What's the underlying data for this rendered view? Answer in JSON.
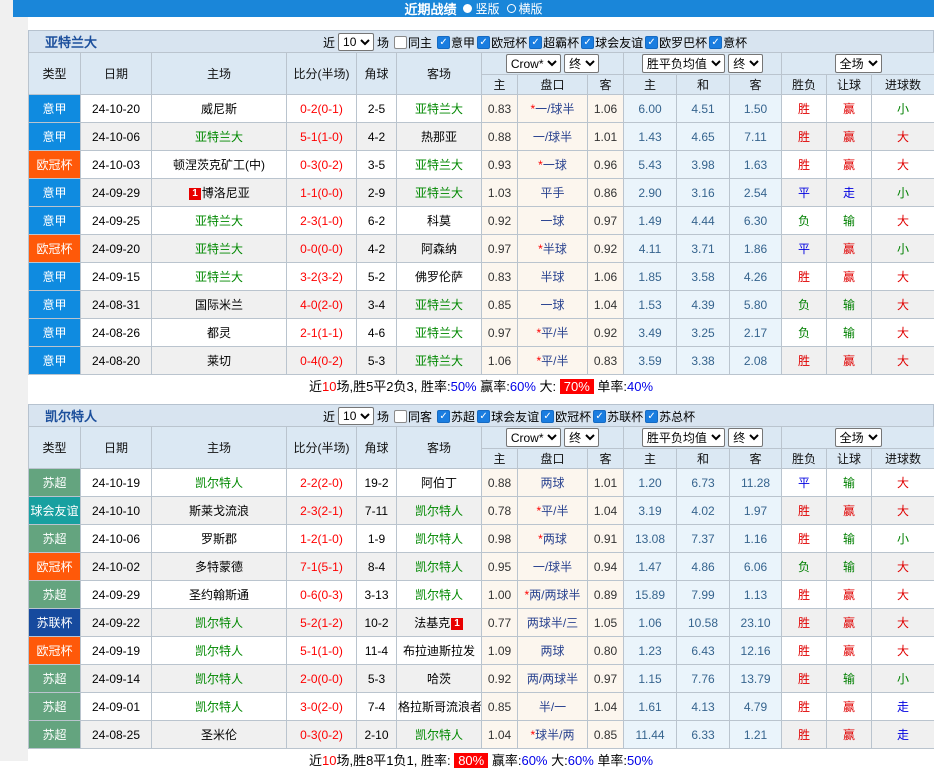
{
  "title_bar": {
    "title": "近期战绩",
    "radio_vertical": "竖版",
    "radio_horizontal": "横版"
  },
  "filter": {
    "near": "近",
    "count": "10",
    "matches": "场"
  },
  "table_header": {
    "type": "类型",
    "date": "日期",
    "home": "主场",
    "score": "比分(半场)",
    "corner": "角球",
    "away": "客场",
    "odds_home": "主",
    "handicap": "盘口",
    "odds_away": "客",
    "avg_home": "主",
    "avg_draw": "和",
    "avg_away": "客",
    "wdl": "胜负",
    "handicap_result": "让球",
    "goals": "进球数",
    "selects": {
      "bookmaker": "Crow*",
      "final1": "终",
      "avg": "胜平负均值",
      "final2": "终",
      "scope": "全场"
    }
  },
  "league_colors": {
    "意甲": "#0f8be0",
    "欧冠杯": "#ff5909",
    "苏超": "#64a47f",
    "球会友谊": "#18a0a0",
    "苏联杯": "#164a9e"
  },
  "accent_colors": {
    "target_team": "#008800",
    "score": "#fe0000",
    "titlebar": "#1a86d9"
  },
  "sections": [
    {
      "team": "亚特兰大",
      "same_side_label": "同主",
      "same_side_checked": false,
      "leagues": [
        {
          "label": "意甲",
          "checked": true
        },
        {
          "label": "欧冠杯",
          "checked": true
        },
        {
          "label": "超霸杯",
          "checked": true
        },
        {
          "label": "球会友谊",
          "checked": true
        },
        {
          "label": "欧罗巴杯",
          "checked": true
        },
        {
          "label": "意杯",
          "checked": true
        }
      ],
      "rows": [
        {
          "lg": "意甲",
          "date": "24-10-20",
          "home": "威尼斯",
          "score": "0-2(0-1)",
          "corner": "2-5",
          "away": "亚特兰大",
          "oh": "0.83",
          "hcp": "*一/球半",
          "oa": "1.06",
          "mh": "6.00",
          "md": "4.51",
          "ma": "1.50",
          "r1": "胜",
          "r2": "赢",
          "r3": "小"
        },
        {
          "lg": "意甲",
          "date": "24-10-06",
          "home": "亚特兰大",
          "score": "5-1(1-0)",
          "corner": "4-2",
          "away": "热那亚",
          "oh": "0.88",
          "hcp": "一/球半",
          "oa": "1.01",
          "mh": "1.43",
          "md": "4.65",
          "ma": "7.11",
          "r1": "胜",
          "r2": "赢",
          "r3": "大"
        },
        {
          "lg": "欧冠杯",
          "date": "24-10-03",
          "home": "顿涅茨克矿工(中)",
          "score": "0-3(0-2)",
          "corner": "3-5",
          "away": "亚特兰大",
          "oh": "0.93",
          "hcp": "*一球",
          "oa": "0.96",
          "mh": "5.43",
          "md": "3.98",
          "ma": "1.63",
          "r1": "胜",
          "r2": "赢",
          "r3": "大"
        },
        {
          "lg": "意甲",
          "date": "24-09-29",
          "home": "博洛尼亚",
          "hc": "1",
          "score": "1-1(0-0)",
          "corner": "2-9",
          "away": "亚特兰大",
          "oh": "1.03",
          "hcp": "平手",
          "oa": "0.86",
          "mh": "2.90",
          "md": "3.16",
          "ma": "2.54",
          "r1": "平",
          "r2": "走",
          "r3": "小"
        },
        {
          "lg": "意甲",
          "date": "24-09-25",
          "home": "亚特兰大",
          "score": "2-3(1-0)",
          "corner": "6-2",
          "away": "科莫",
          "oh": "0.92",
          "hcp": "一球",
          "oa": "0.97",
          "mh": "1.49",
          "md": "4.44",
          "ma": "6.30",
          "r1": "负",
          "r2": "输",
          "r3": "大"
        },
        {
          "lg": "欧冠杯",
          "date": "24-09-20",
          "home": "亚特兰大",
          "score": "0-0(0-0)",
          "corner": "4-2",
          "away": "阿森纳",
          "oh": "0.97",
          "hcp": "*半球",
          "oa": "0.92",
          "mh": "4.11",
          "md": "3.71",
          "ma": "1.86",
          "r1": "平",
          "r2": "赢",
          "r3": "小"
        },
        {
          "lg": "意甲",
          "date": "24-09-15",
          "home": "亚特兰大",
          "score": "3-2(3-2)",
          "corner": "5-2",
          "away": "佛罗伦萨",
          "oh": "0.83",
          "hcp": "半球",
          "oa": "1.06",
          "mh": "1.85",
          "md": "3.58",
          "ma": "4.26",
          "r1": "胜",
          "r2": "赢",
          "r3": "大"
        },
        {
          "lg": "意甲",
          "date": "24-08-31",
          "home": "国际米兰",
          "score": "4-0(2-0)",
          "corner": "3-4",
          "away": "亚特兰大",
          "oh": "0.85",
          "hcp": "一球",
          "oa": "1.04",
          "mh": "1.53",
          "md": "4.39",
          "ma": "5.80",
          "r1": "负",
          "r2": "输",
          "r3": "大"
        },
        {
          "lg": "意甲",
          "date": "24-08-26",
          "home": "都灵",
          "score": "2-1(1-1)",
          "corner": "4-6",
          "away": "亚特兰大",
          "oh": "0.97",
          "hcp": "*平/半",
          "oa": "0.92",
          "mh": "3.49",
          "md": "3.25",
          "ma": "2.17",
          "r1": "负",
          "r2": "输",
          "r3": "大"
        },
        {
          "lg": "意甲",
          "date": "24-08-20",
          "home": "莱切",
          "score": "0-4(0-2)",
          "corner": "5-3",
          "away": "亚特兰大",
          "oh": "1.06",
          "hcp": "*平/半",
          "oa": "0.83",
          "mh": "3.59",
          "md": "3.38",
          "ma": "2.08",
          "r1": "胜",
          "r2": "赢",
          "r3": "大"
        }
      ],
      "summary_parts": [
        {
          "t": "近",
          "c": "k"
        },
        {
          "t": "10",
          "c": "r"
        },
        {
          "t": "场,胜5平2负3, 胜率:",
          "c": "k"
        },
        {
          "t": "50%",
          "c": "b"
        },
        {
          "t": " 赢率:",
          "c": "k"
        },
        {
          "t": "60%",
          "c": "b"
        },
        {
          "t": " 大: ",
          "c": "k"
        },
        {
          "t": "70%",
          "c": "hl"
        },
        {
          "t": " 单率:",
          "c": "k"
        },
        {
          "t": "40%",
          "c": "b"
        }
      ]
    },
    {
      "team": "凯尔特人",
      "same_side_label": "同客",
      "same_side_checked": false,
      "leagues": [
        {
          "label": "苏超",
          "checked": true
        },
        {
          "label": "球会友谊",
          "checked": true
        },
        {
          "label": "欧冠杯",
          "checked": true
        },
        {
          "label": "苏联杯",
          "checked": true
        },
        {
          "label": "苏总杯",
          "checked": true
        }
      ],
      "rows": [
        {
          "lg": "苏超",
          "date": "24-10-19",
          "home": "凯尔特人",
          "score": "2-2(2-0)",
          "corner": "19-2",
          "away": "阿伯丁",
          "oh": "0.88",
          "hcp": "两球",
          "oa": "1.01",
          "mh": "1.20",
          "md": "6.73",
          "ma": "11.28",
          "r1": "平",
          "r2": "输",
          "r3": "大"
        },
        {
          "lg": "球会友谊",
          "date": "24-10-10",
          "home": "斯莱戈流浪",
          "score": "2-3(2-1)",
          "corner": "7-11",
          "away": "凯尔特人",
          "oh": "0.78",
          "hcp": "*平/半",
          "oa": "1.04",
          "mh": "3.19",
          "md": "4.02",
          "ma": "1.97",
          "r1": "胜",
          "r2": "赢",
          "r3": "大"
        },
        {
          "lg": "苏超",
          "date": "24-10-06",
          "home": "罗斯郡",
          "score": "1-2(1-0)",
          "corner": "1-9",
          "away": "凯尔特人",
          "oh": "0.98",
          "hcp": "*两球",
          "oa": "0.91",
          "mh": "13.08",
          "md": "7.37",
          "ma": "1.16",
          "r1": "胜",
          "r2": "输",
          "r3": "小"
        },
        {
          "lg": "欧冠杯",
          "date": "24-10-02",
          "home": "多特蒙德",
          "score": "7-1(5-1)",
          "corner": "8-4",
          "away": "凯尔特人",
          "oh": "0.95",
          "hcp": "一/球半",
          "oa": "0.94",
          "mh": "1.47",
          "md": "4.86",
          "ma": "6.06",
          "r1": "负",
          "r2": "输",
          "r3": "大"
        },
        {
          "lg": "苏超",
          "date": "24-09-29",
          "home": "圣约翰斯通",
          "score": "0-6(0-3)",
          "corner": "3-13",
          "away": "凯尔特人",
          "oh": "1.00",
          "hcp": "*两/两球半",
          "oa": "0.89",
          "mh": "15.89",
          "md": "7.99",
          "ma": "1.13",
          "r1": "胜",
          "r2": "赢",
          "r3": "大"
        },
        {
          "lg": "苏联杯",
          "date": "24-09-22",
          "home": "凯尔特人",
          "score": "5-2(1-2)",
          "corner": "10-2",
          "away": "法基克",
          "ac": "1",
          "oh": "0.77",
          "hcp": "两球半/三",
          "oa": "1.05",
          "mh": "1.06",
          "md": "10.58",
          "ma": "23.10",
          "r1": "胜",
          "r2": "赢",
          "r3": "大"
        },
        {
          "lg": "欧冠杯",
          "date": "24-09-19",
          "home": "凯尔特人",
          "score": "5-1(1-0)",
          "corner": "11-4",
          "away": "布拉迪斯拉发",
          "oh": "1.09",
          "hcp": "两球",
          "oa": "0.80",
          "mh": "1.23",
          "md": "6.43",
          "ma": "12.16",
          "r1": "胜",
          "r2": "赢",
          "r3": "大"
        },
        {
          "lg": "苏超",
          "date": "24-09-14",
          "home": "凯尔特人",
          "score": "2-0(0-0)",
          "corner": "5-3",
          "away": "哈茨",
          "oh": "0.92",
          "hcp": "两/两球半",
          "oa": "0.97",
          "mh": "1.15",
          "md": "7.76",
          "ma": "13.79",
          "r1": "胜",
          "r2": "输",
          "r3": "小"
        },
        {
          "lg": "苏超",
          "date": "24-09-01",
          "home": "凯尔特人",
          "score": "3-0(2-0)",
          "corner": "7-4",
          "away": "格拉斯哥流浪者",
          "oh": "0.85",
          "hcp": "半/一",
          "oa": "1.04",
          "mh": "1.61",
          "md": "4.13",
          "ma": "4.79",
          "r1": "胜",
          "r2": "赢",
          "r3": "走"
        },
        {
          "lg": "苏超",
          "date": "24-08-25",
          "home": "圣米伦",
          "score": "0-3(0-2)",
          "corner": "2-10",
          "away": "凯尔特人",
          "oh": "1.04",
          "hcp": "*球半/两",
          "oa": "0.85",
          "mh": "11.44",
          "md": "6.33",
          "ma": "1.21",
          "r1": "胜",
          "r2": "赢",
          "r3": "走"
        }
      ],
      "summary_parts": [
        {
          "t": "近",
          "c": "k"
        },
        {
          "t": "10",
          "c": "r"
        },
        {
          "t": "场,胜8平1负1, 胜率: ",
          "c": "k"
        },
        {
          "t": "80%",
          "c": "hl"
        },
        {
          "t": " 赢率:",
          "c": "k"
        },
        {
          "t": "60%",
          "c": "b"
        },
        {
          "t": " 大:",
          "c": "k"
        },
        {
          "t": "60%",
          "c": "b"
        },
        {
          "t": " 单率:",
          "c": "k"
        },
        {
          "t": "50%",
          "c": "b"
        }
      ]
    }
  ]
}
